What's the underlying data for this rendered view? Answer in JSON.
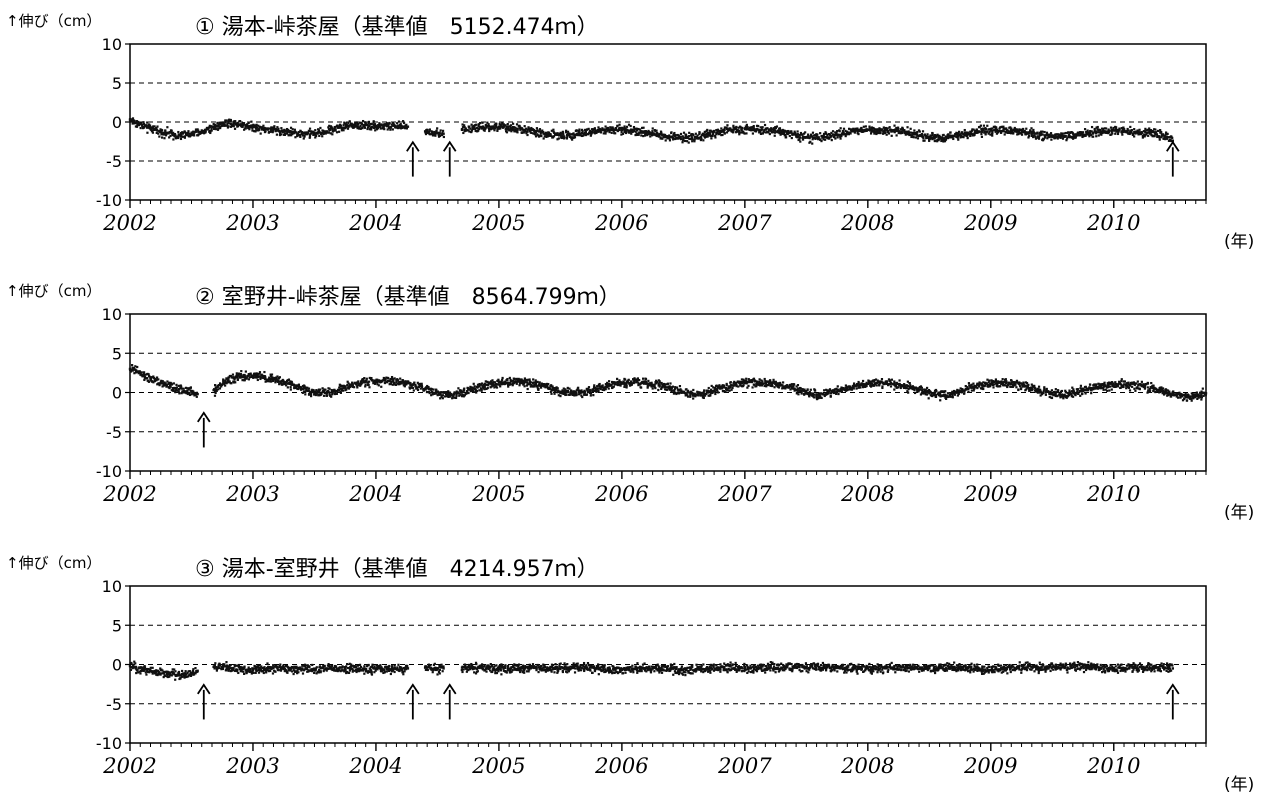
{
  "chart_data": [
    {
      "type": "scatter",
      "title": "① 湯本-峠茶屋（基準値　5152.474ｍ）",
      "ylabel": "↑伸び（cm）",
      "xunit": "(年)",
      "ylim": [
        -10,
        10
      ],
      "xlim": [
        2002,
        2010.75
      ],
      "yticks": [
        10,
        5,
        0,
        -5,
        -10
      ],
      "xticks": [
        2002,
        2003,
        2004,
        2005,
        2006,
        2007,
        2008,
        2009,
        2010
      ],
      "grid": "dashed horizontal at 5, 0, -5",
      "series": [
        {
          "x": [
            2002.0,
            2002.1,
            2002.2,
            2002.3,
            2002.4,
            2002.5,
            2002.6,
            2002.7,
            2002.8,
            2002.9,
            2003.0,
            2003.1,
            2003.2,
            2003.3,
            2003.4,
            2003.5,
            2003.6,
            2003.7,
            2003.8,
            2003.9,
            2004.0,
            2004.1,
            2004.2,
            2004.26,
            2004.34,
            2004.4,
            2004.5,
            2004.55,
            2004.63,
            2004.7,
            2004.8,
            2004.9,
            2005.0,
            2005.1,
            2005.2,
            2005.3,
            2005.4,
            2005.5,
            2005.6,
            2005.7,
            2005.8,
            2005.9,
            2006.0,
            2006.1,
            2006.2,
            2006.3,
            2006.4,
            2006.5,
            2006.6,
            2006.7,
            2006.8,
            2006.9,
            2007.0,
            2007.1,
            2007.2,
            2007.3,
            2007.4,
            2007.5,
            2007.6,
            2007.7,
            2007.8,
            2007.9,
            2008.0,
            2008.1,
            2008.2,
            2008.3,
            2008.4,
            2008.5,
            2008.6,
            2008.7,
            2008.8,
            2008.9,
            2009.0,
            2009.1,
            2009.2,
            2009.3,
            2009.4,
            2009.5,
            2009.6,
            2009.7,
            2009.8,
            2009.9,
            2010.0,
            2010.1,
            2010.2,
            2010.3,
            2010.4,
            2010.48
          ],
          "y": [
            0.3,
            -0.5,
            -1.0,
            -1.4,
            -1.7,
            -1.6,
            -1.2,
            -0.5,
            -0.1,
            -0.3,
            -0.6,
            -0.9,
            -1.1,
            -1.3,
            -1.5,
            -1.5,
            -1.2,
            -0.7,
            -0.4,
            -0.4,
            -0.5,
            -0.5,
            -0.6,
            -0.6,
            null,
            -1.2,
            -1.4,
            -1.5,
            null,
            -1.0,
            -0.8,
            -0.7,
            -0.6,
            -0.8,
            -1.0,
            -1.3,
            -1.6,
            -1.7,
            -1.6,
            -1.4,
            -1.2,
            -1.0,
            -1.0,
            -1.1,
            -1.3,
            -1.6,
            -1.9,
            -2.0,
            -1.9,
            -1.6,
            -1.2,
            -1.0,
            -0.9,
            -0.9,
            -1.0,
            -1.2,
            -1.6,
            -2.0,
            -2.1,
            -1.8,
            -1.4,
            -1.1,
            -1.0,
            -1.0,
            -1.1,
            -1.3,
            -1.6,
            -1.9,
            -2.0,
            -1.8,
            -1.5,
            -1.2,
            -1.1,
            -1.1,
            -1.2,
            -1.4,
            -1.7,
            -1.9,
            -1.9,
            -1.7,
            -1.4,
            -1.2,
            -1.1,
            -1.2,
            -1.3,
            -1.4,
            -1.6,
            -2.4
          ]
        }
      ],
      "arrows": [
        2004.3,
        2004.6,
        2010.48
      ]
    },
    {
      "type": "scatter",
      "title": "② 室野井-峠茶屋（基準値　8564.799ｍ）",
      "ylabel": "↑伸び（cm）",
      "xunit": "(年)",
      "ylim": [
        -10,
        10
      ],
      "xlim": [
        2002,
        2010.75
      ],
      "yticks": [
        10,
        5,
        0,
        -5,
        -10
      ],
      "xticks": [
        2002,
        2003,
        2004,
        2005,
        2006,
        2007,
        2008,
        2009,
        2010
      ],
      "grid": "dashed horizontal at 5, 0, -5",
      "series": [
        {
          "x": [
            2002.0,
            2002.05,
            2002.1,
            2002.2,
            2002.3,
            2002.4,
            2002.5,
            2002.55,
            2002.6,
            2002.68,
            2002.75,
            2002.8,
            2002.9,
            2003.0,
            2003.1,
            2003.2,
            2003.3,
            2003.4,
            2003.5,
            2003.6,
            2003.7,
            2003.8,
            2003.9,
            2004.0,
            2004.1,
            2004.2,
            2004.3,
            2004.4,
            2004.5,
            2004.6,
            2004.7,
            2004.8,
            2004.9,
            2005.0,
            2005.1,
            2005.2,
            2005.3,
            2005.4,
            2005.5,
            2005.6,
            2005.7,
            2005.8,
            2005.9,
            2006.0,
            2006.1,
            2006.2,
            2006.3,
            2006.4,
            2006.5,
            2006.6,
            2006.7,
            2006.8,
            2006.9,
            2007.0,
            2007.1,
            2007.2,
            2007.3,
            2007.4,
            2007.5,
            2007.6,
            2007.7,
            2007.8,
            2007.9,
            2008.0,
            2008.1,
            2008.2,
            2008.3,
            2008.4,
            2008.5,
            2008.6,
            2008.7,
            2008.8,
            2008.9,
            2009.0,
            2009.1,
            2009.2,
            2009.3,
            2009.4,
            2009.5,
            2009.6,
            2009.7,
            2009.8,
            2009.9,
            2010.0,
            2010.1,
            2010.2,
            2010.3,
            2010.4,
            2010.5,
            2010.6,
            2010.7,
            2010.75
          ],
          "y": [
            3.0,
            2.8,
            2.2,
            1.5,
            0.9,
            0.4,
            0.1,
            -0.2,
            null,
            0.3,
            1.0,
            1.6,
            2.0,
            2.1,
            1.9,
            1.5,
            1.1,
            0.5,
            0.0,
            -0.1,
            0.3,
            0.9,
            1.3,
            1.5,
            1.5,
            1.3,
            1.0,
            0.5,
            0.0,
            -0.3,
            0.0,
            0.5,
            1.0,
            1.3,
            1.4,
            1.3,
            1.0,
            0.6,
            0.1,
            -0.1,
            0.1,
            0.5,
            0.9,
            1.2,
            1.3,
            1.2,
            0.9,
            0.5,
            0.0,
            -0.3,
            0.0,
            0.5,
            0.9,
            1.2,
            1.3,
            1.2,
            0.9,
            0.5,
            0.0,
            -0.4,
            -0.1,
            0.4,
            0.9,
            1.1,
            1.2,
            1.1,
            0.8,
            0.4,
            -0.1,
            -0.4,
            -0.1,
            0.4,
            0.9,
            1.1,
            1.1,
            1.0,
            0.7,
            0.3,
            -0.2,
            -0.3,
            0.0,
            0.5,
            0.9,
            1.0,
            1.0,
            0.9,
            0.6,
            0.2,
            -0.3,
            -0.6,
            -0.4,
            -0.1
          ]
        }
      ],
      "arrows": [
        2002.6
      ]
    },
    {
      "type": "scatter",
      "title": "③ 湯本-室野井（基準値　4214.957ｍ）",
      "ylabel": "↑伸び（cm）",
      "xunit": "(年)",
      "ylim": [
        -10,
        10
      ],
      "xlim": [
        2002,
        2010.75
      ],
      "yticks": [
        10,
        5,
        0,
        -5,
        -10
      ],
      "xticks": [
        2002,
        2003,
        2004,
        2005,
        2006,
        2007,
        2008,
        2009,
        2010
      ],
      "grid": "dashed horizontal at 5, 0, -5",
      "series": [
        {
          "x": [
            2002.0,
            2002.1,
            2002.2,
            2002.3,
            2002.4,
            2002.5,
            2002.55,
            2002.6,
            2002.68,
            2002.8,
            2002.9,
            2003.0,
            2003.1,
            2003.2,
            2003.3,
            2003.4,
            2003.5,
            2003.6,
            2003.7,
            2003.8,
            2003.9,
            2004.0,
            2004.1,
            2004.2,
            2004.26,
            2004.34,
            2004.4,
            2004.5,
            2004.55,
            2004.63,
            2004.7,
            2004.8,
            2004.9,
            2005.0,
            2005.1,
            2005.2,
            2005.3,
            2005.4,
            2005.5,
            2005.6,
            2005.7,
            2005.8,
            2005.9,
            2006.0,
            2006.1,
            2006.2,
            2006.3,
            2006.4,
            2006.5,
            2006.6,
            2006.7,
            2006.8,
            2006.9,
            2007.0,
            2007.1,
            2007.2,
            2007.3,
            2007.4,
            2007.5,
            2007.6,
            2007.7,
            2007.8,
            2007.9,
            2008.0,
            2008.1,
            2008.2,
            2008.3,
            2008.4,
            2008.5,
            2008.6,
            2008.7,
            2008.8,
            2008.9,
            2009.0,
            2009.1,
            2009.2,
            2009.3,
            2009.4,
            2009.5,
            2009.6,
            2009.7,
            2009.8,
            2009.9,
            2010.0,
            2010.1,
            2010.2,
            2010.3,
            2010.4,
            2010.48
          ],
          "y": [
            -0.2,
            -0.6,
            -0.9,
            -1.2,
            -1.3,
            -1.1,
            -0.8,
            null,
            -0.3,
            -0.4,
            -0.6,
            -0.7,
            -0.6,
            -0.5,
            -0.5,
            -0.6,
            -0.6,
            -0.5,
            -0.5,
            -0.5,
            -0.6,
            -0.6,
            -0.6,
            -0.6,
            -0.5,
            null,
            -0.4,
            -0.5,
            -0.5,
            null,
            -0.4,
            -0.4,
            -0.5,
            -0.6,
            -0.5,
            -0.5,
            -0.4,
            -0.5,
            -0.5,
            -0.4,
            -0.4,
            -0.5,
            -0.6,
            -0.7,
            -0.6,
            -0.5,
            -0.5,
            -0.6,
            -0.7,
            -0.6,
            -0.5,
            -0.4,
            -0.5,
            -0.6,
            -0.5,
            -0.4,
            -0.4,
            -0.4,
            -0.4,
            -0.3,
            -0.4,
            -0.5,
            -0.5,
            -0.5,
            -0.5,
            -0.4,
            -0.4,
            -0.5,
            -0.5,
            -0.4,
            -0.4,
            -0.5,
            -0.6,
            -0.7,
            -0.6,
            -0.5,
            -0.4,
            -0.4,
            -0.3,
            -0.3,
            -0.2,
            -0.3,
            -0.4,
            -0.5,
            -0.5,
            -0.5,
            -0.5,
            -0.4,
            -0.5
          ]
        }
      ],
      "arrows": [
        2002.6,
        2004.3,
        2004.6,
        2010.48
      ]
    }
  ]
}
